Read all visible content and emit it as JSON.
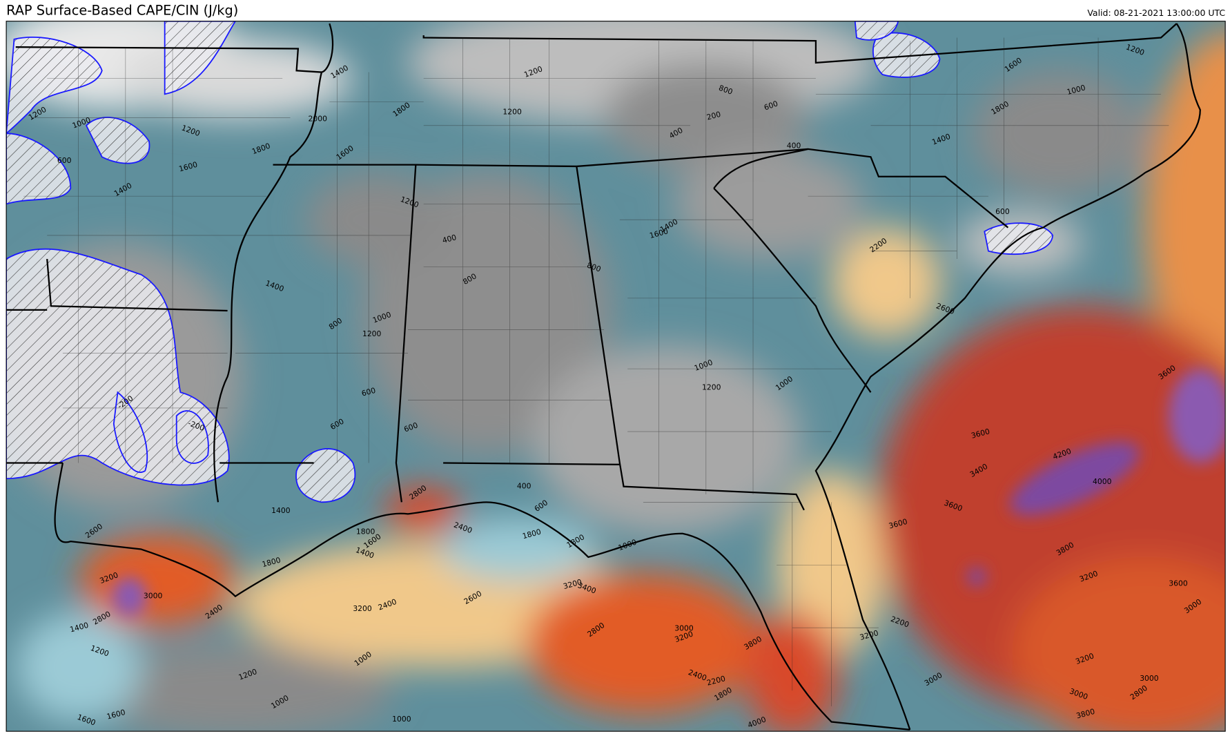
{
  "header": {
    "title": "RAP Surface-Based CAPE/CIN (J/kg)",
    "valid": "Valid: 08-21-2021 13:00:00 UTC"
  },
  "contour_labels": [
    1400,
    1200,
    1200,
    1800,
    1200,
    1600,
    1400,
    1800,
    2000,
    1600,
    1200,
    400,
    800,
    1000,
    1200,
    800,
    1400,
    600,
    600,
    600,
    1400,
    2800,
    2400,
    1800,
    1800,
    1000,
    400,
    600,
    800,
    1600,
    1400,
    1000,
    1200,
    1000,
    800,
    200,
    400,
    600,
    400,
    1600,
    1200,
    1000,
    1800,
    1400,
    600,
    2200,
    2600,
    3600,
    3400,
    4200,
    4000,
    3600,
    3600,
    3600,
    3800,
    3200,
    3600,
    3000,
    2200,
    3200,
    3000,
    3200,
    3000,
    2800,
    3000,
    3800,
    3800,
    3200,
    3000,
    2800,
    3400,
    3200,
    2600,
    2400,
    3200,
    2400,
    1200,
    1400,
    2800,
    3200,
    3000,
    2600,
    1600,
    1600,
    1000,
    1200,
    1000,
    1000,
    2400,
    2200,
    1800,
    4000,
    1800,
    1600,
    1400,
    1800,
    1200,
    1000,
    600,
    -200,
    -200
  ]
}
